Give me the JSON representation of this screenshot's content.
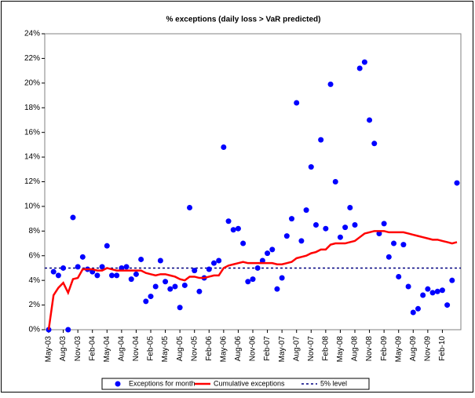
{
  "chart_data": {
    "type": "scatter-line",
    "title": "% exceptions (daily loss > VaR predicted)",
    "categories": [
      "May-03",
      null,
      null,
      "Aug-03",
      null,
      null,
      "Nov-03",
      null,
      null,
      "Feb-04",
      null,
      null,
      "May-04",
      null,
      null,
      "Aug-04",
      null,
      null,
      "Nov-04",
      null,
      null,
      "Feb-05",
      null,
      null,
      "May-05",
      null,
      null,
      "Aug-05",
      null,
      null,
      "Nov-05",
      null,
      null,
      "Feb-06",
      null,
      null,
      "May-06",
      null,
      null,
      "Aug-06",
      null,
      null,
      "Nov-06",
      null,
      null,
      "Feb-07",
      null,
      null,
      "May-07",
      null,
      null,
      "Aug-07",
      null,
      null,
      "Nov-07",
      null,
      null,
      "Feb-08",
      null,
      null,
      "May-08",
      null,
      null,
      "Aug-08",
      null,
      null,
      "Nov-08",
      null,
      null,
      "Feb-09",
      null,
      null,
      "May-09",
      null,
      null,
      "Aug-09",
      null,
      null,
      "Nov-09",
      null,
      null,
      "Feb-10",
      null,
      null,
      null
    ],
    "series": [
      {
        "name": "Exceptions for month",
        "kind": "scatter",
        "color": "#0000ff",
        "values": [
          0,
          4.7,
          4.4,
          5.0,
          0,
          9.1,
          5.1,
          5.9,
          4.9,
          4.7,
          4.4,
          5.1,
          6.8,
          4.4,
          4.4,
          5.0,
          5.1,
          4.1,
          4.5,
          5.7,
          2.3,
          2.7,
          3.5,
          5.6,
          3.9,
          3.3,
          3.5,
          1.8,
          3.6,
          9.9,
          4.8,
          3.1,
          4.2,
          4.9,
          5.4,
          5.6,
          14.8,
          8.8,
          8.1,
          8.2,
          7.0,
          3.9,
          4.1,
          5.0,
          5.6,
          6.2,
          6.5,
          3.3,
          4.2,
          7.6,
          9.0,
          18.4,
          7.2,
          9.7,
          13.2,
          8.5,
          15.4,
          8.2,
          19.9,
          12.0,
          7.5,
          8.3,
          9.9,
          8.5,
          21.2,
          21.7,
          17.0,
          15.1,
          7.8,
          8.6,
          5.9,
          7.0,
          4.3,
          6.9,
          3.5,
          1.4,
          1.7,
          2.8,
          3.3,
          3.0,
          3.1,
          3.2,
          2.0,
          4.0,
          11.9
        ]
      },
      {
        "name": "Cumulative exceptions",
        "kind": "line",
        "color": "#ff0000",
        "values": [
          0,
          2.8,
          3.4,
          3.8,
          3.0,
          4.1,
          4.2,
          4.9,
          4.9,
          4.9,
          4.8,
          4.8,
          5.0,
          4.9,
          4.8,
          4.8,
          4.8,
          4.8,
          4.8,
          4.8,
          4.6,
          4.5,
          4.4,
          4.5,
          4.5,
          4.4,
          4.3,
          4.1,
          4.0,
          4.3,
          4.3,
          4.2,
          4.2,
          4.3,
          4.4,
          4.4,
          5.0,
          5.2,
          5.3,
          5.4,
          5.5,
          5.4,
          5.4,
          5.4,
          5.4,
          5.4,
          5.4,
          5.3,
          5.3,
          5.4,
          5.5,
          5.8,
          5.9,
          6.0,
          6.2,
          6.3,
          6.5,
          6.5,
          6.9,
          7.0,
          7.0,
          7.0,
          7.1,
          7.2,
          7.5,
          7.8,
          7.9,
          8.0,
          8.0,
          8.0,
          7.9,
          7.9,
          7.9,
          7.9,
          7.8,
          7.7,
          7.6,
          7.5,
          7.4,
          7.3,
          7.3,
          7.2,
          7.1,
          7.0,
          7.1
        ]
      }
    ],
    "reference_line": {
      "name": "5% level",
      "value": 5,
      "color": "#000080"
    },
    "ylim": [
      0,
      24
    ],
    "yticks": [
      {
        "value": 0,
        "label": "0%"
      },
      {
        "value": 2,
        "label": "2%"
      },
      {
        "value": 4,
        "label": "4%"
      },
      {
        "value": 6,
        "label": "6%"
      },
      {
        "value": 8,
        "label": "8%"
      },
      {
        "value": 10,
        "label": "10%"
      },
      {
        "value": 12,
        "label": "12%"
      },
      {
        "value": 14,
        "label": "14%"
      },
      {
        "value": 16,
        "label": "16%"
      },
      {
        "value": 18,
        "label": "18%"
      },
      {
        "value": 20,
        "label": "20%"
      },
      {
        "value": 22,
        "label": "22%"
      },
      {
        "value": 24,
        "label": "24%"
      }
    ],
    "legend": "bottom"
  }
}
